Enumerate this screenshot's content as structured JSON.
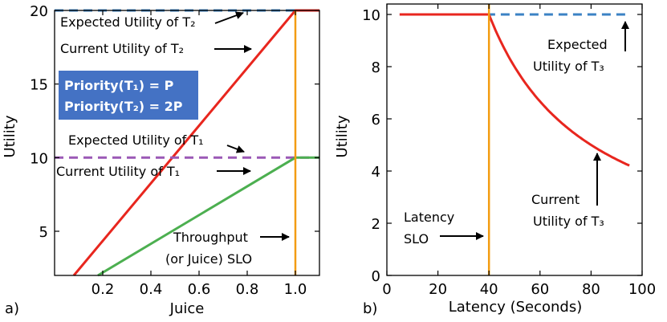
{
  "chart_data": [
    {
      "panel": "a)",
      "type": "line",
      "xlabel": "Juice",
      "ylabel": "Utility",
      "xlim": [
        0.0,
        1.1
      ],
      "ylim": [
        2,
        20
      ],
      "xticks": [
        0.2,
        0.4,
        0.6,
        0.8,
        1.0
      ],
      "xtick_labels": [
        "0.2",
        "0.4",
        "0.6",
        "0.8",
        "1.0"
      ],
      "yticks": [
        5,
        10,
        15,
        20
      ],
      "ytick_labels": [
        "5",
        "10",
        "15",
        "20"
      ],
      "series": [
        {
          "name": "Expected Utility of T2",
          "color": "#3b82c4",
          "style": "dashed",
          "x": [
            0.0,
            1.1
          ],
          "y": [
            20,
            20
          ]
        },
        {
          "name": "Current Utility of T2",
          "color": "#e8261e",
          "style": "solid",
          "x": [
            0.08,
            1.0,
            1.1
          ],
          "y": [
            2.0,
            20,
            20
          ]
        },
        {
          "name": "Expected Utility of T1",
          "color": "#9b59b6",
          "style": "dashed",
          "x": [
            0.0,
            1.1
          ],
          "y": [
            10,
            10
          ]
        },
        {
          "name": "Current Utility of T1",
          "color": "#4caf50",
          "style": "solid",
          "x": [
            0.18,
            1.0,
            1.1
          ],
          "y": [
            2.0,
            10,
            10
          ]
        }
      ],
      "vline": {
        "x": 1.0,
        "color": "#f39c12",
        "label": "Throughput (or Juice) SLO"
      },
      "annotations": {
        "exp_t2": "Expected Utility of T₂",
        "cur_t2": "Current Utility of T₂",
        "exp_t1": "Expected Utility of T₁",
        "cur_t1": "Current Utility of T₁",
        "slo_line1": "Throughput",
        "slo_line2": "(or Juice) SLO"
      },
      "priority_box": {
        "line1": "Priority(T₁) = P",
        "line2": "Priority(T₂) = 2P",
        "bg_color": "#4472c4"
      }
    },
    {
      "panel": "b)",
      "type": "line",
      "xlabel": "Latency (Seconds)",
      "ylabel": "Utility",
      "xlim": [
        0,
        100
      ],
      "ylim": [
        0,
        10.4
      ],
      "xticks": [
        0,
        20,
        40,
        60,
        80,
        100
      ],
      "xtick_labels": [
        "0",
        "20",
        "40",
        "60",
        "80",
        "100"
      ],
      "yticks": [
        0,
        2,
        4,
        6,
        8,
        10
      ],
      "ytick_labels": [
        "0",
        "2",
        "4",
        "6",
        "8",
        "10"
      ],
      "series": [
        {
          "name": "Expected Utility of T3",
          "color": "#3b82c4",
          "style": "dashed",
          "x": [
            5,
            95
          ],
          "y": [
            10,
            10
          ]
        },
        {
          "name": "Current Utility of T3",
          "color": "#e8261e",
          "style": "solid",
          "func": "y = 10 for x <= 40, y = 400/x for x > 40",
          "x": [
            5,
            40,
            95
          ],
          "y": [
            10,
            10,
            4.21
          ]
        }
      ],
      "vline": {
        "x": 40,
        "color": "#f39c12",
        "label": "Latency SLO"
      },
      "annotations": {
        "exp_t3_1": "Expected",
        "exp_t3_2": "Utility of T₃",
        "cur_t3_1": "Current",
        "cur_t3_2": "Utility of T₃",
        "slo_1": "Latency",
        "slo_2": "SLO"
      }
    }
  ]
}
